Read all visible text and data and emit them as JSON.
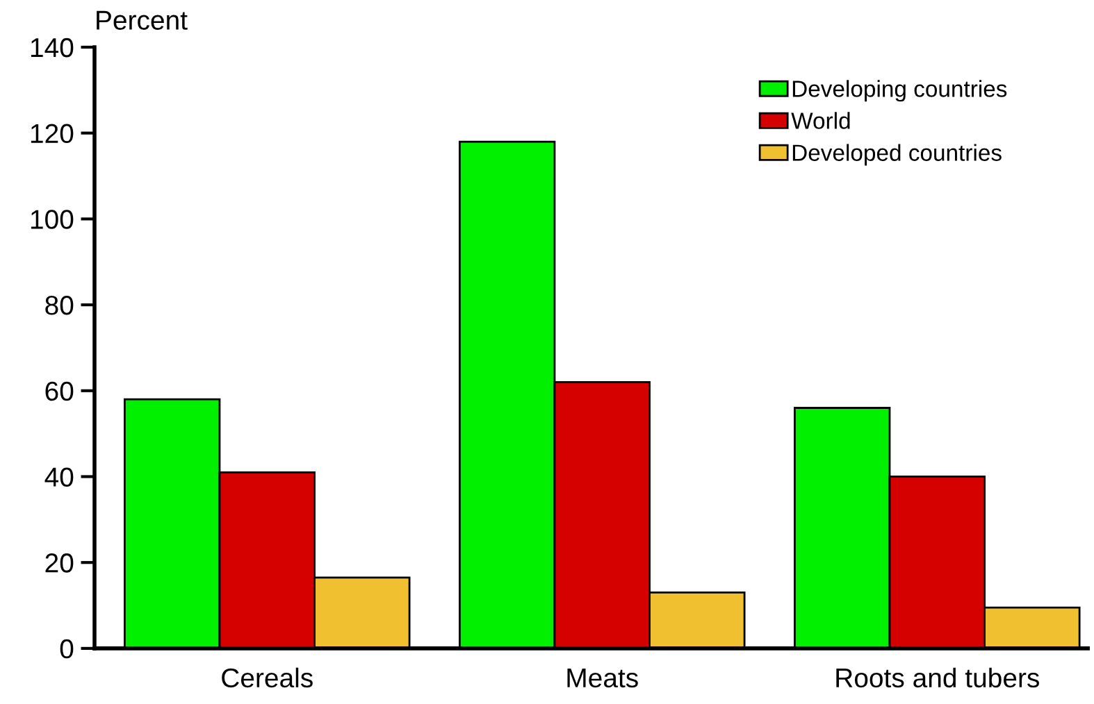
{
  "chart_data": {
    "type": "bar",
    "ylabel": "Percent",
    "categories": [
      "Cereals",
      "Meats",
      "Roots and tubers"
    ],
    "series": [
      {
        "name": "Developing countries",
        "color": "#00f000",
        "values": [
          58,
          118,
          56
        ]
      },
      {
        "name": "World",
        "color": "#d50000",
        "values": [
          41,
          62,
          40
        ]
      },
      {
        "name": "Developed countries",
        "color": "#f0c030",
        "values": [
          16.5,
          13,
          9.5
        ]
      }
    ],
    "ylim": [
      0,
      140
    ],
    "yticks": [
      0,
      20,
      40,
      60,
      80,
      100,
      120,
      140
    ],
    "grid": false,
    "legend": "top right"
  }
}
